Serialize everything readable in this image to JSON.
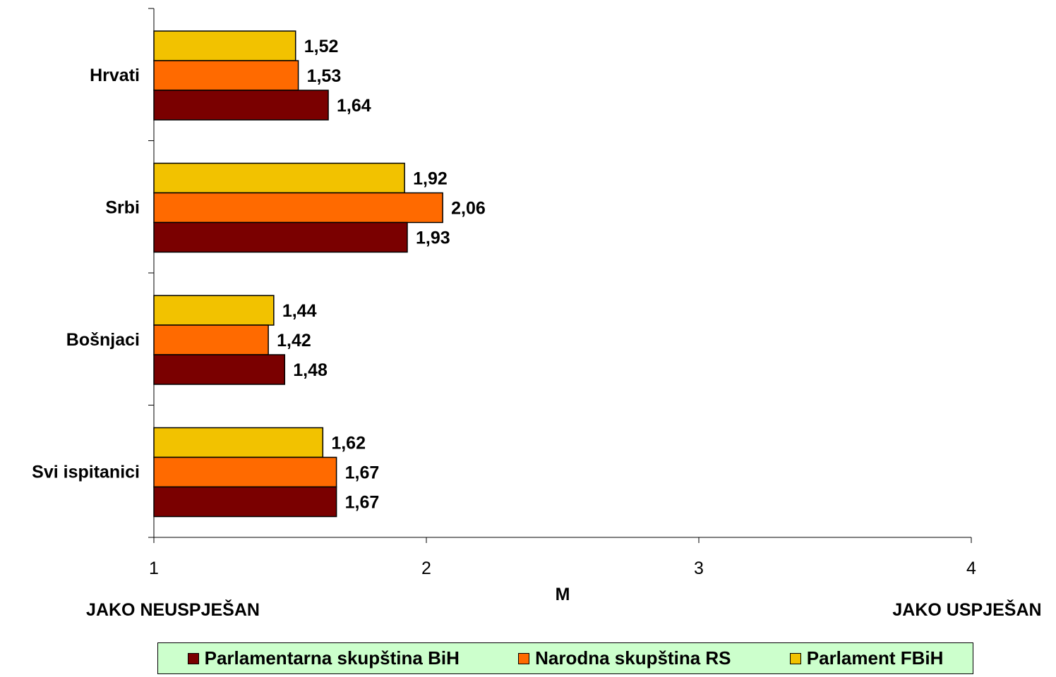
{
  "chart_data": {
    "type": "bar",
    "orientation": "horizontal",
    "categories": [
      "Hrvati",
      "Srbi",
      "Bošnjaci",
      "Svi ispitanici"
    ],
    "series": [
      {
        "name": "Parlament FBiH",
        "color": "#f2c200",
        "values": [
          1.52,
          1.92,
          1.44,
          1.62
        ],
        "labels": [
          "1,52",
          "1,92",
          "1,44",
          "1,62"
        ]
      },
      {
        "name": "Narodna skupština RS",
        "color": "#ff6a00",
        "values": [
          1.53,
          2.06,
          1.42,
          1.67
        ],
        "labels": [
          "1,53",
          "2,06",
          "1,42",
          "1,67"
        ]
      },
      {
        "name": "Parlamentarna skupština BiH",
        "color": "#7a0000",
        "values": [
          1.64,
          1.93,
          1.48,
          1.67
        ],
        "labels": [
          "1,64",
          "1,93",
          "1,48",
          "1,67"
        ]
      }
    ],
    "xlim": [
      1,
      4
    ],
    "xticks": [
      "1",
      "2",
      "3",
      "4"
    ],
    "xlabel": "M",
    "scale_left_label": "JAKO NEUSPJEŠAN",
    "scale_right_label": "JAKO USPJEŠAN",
    "grid": false,
    "legend_position": "bottom"
  },
  "legend": {
    "items": [
      {
        "label": "Parlamentarna skupština BiH",
        "color": "#7a0000"
      },
      {
        "label": "Narodna skupština RS",
        "color": "#ff6a00"
      },
      {
        "label": "Parlament FBiH",
        "color": "#f2c200"
      }
    ]
  }
}
